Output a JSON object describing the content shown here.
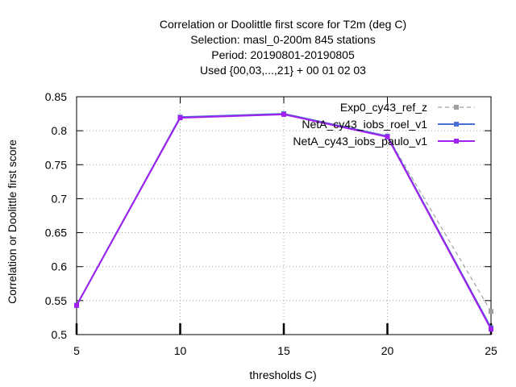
{
  "chart_data": {
    "type": "line",
    "title": [
      "Correlation or Doolittle first score  for T2m (deg C)",
      "Selection: masl_0-200m    845 stations",
      "Period: 20190801-20190805",
      "Used {00,03,...,21} + 00 01 02 03"
    ],
    "xlabel": "thresholds C)",
    "ylabel": "Correlation or Doolittle first score",
    "xlim": [
      5,
      25
    ],
    "ylim": [
      0.5,
      0.85
    ],
    "xticks": [
      "5",
      "10",
      "15",
      "20",
      "25"
    ],
    "yticks": [
      "0.5",
      "0.55",
      "0.6",
      "0.65",
      "0.7",
      "0.75",
      "0.8",
      "0.85"
    ],
    "grid": true,
    "legend_position": "top-right",
    "x": [
      5,
      10,
      15,
      20,
      25
    ],
    "series": [
      {
        "name": "Exp0_cy43_ref_z",
        "values": [
          0.543,
          0.82,
          0.825,
          0.792,
          0.534
        ],
        "color": "#a0a0a0",
        "style": "dashed"
      },
      {
        "name": "NetA_cy43_iobs_roel_v1",
        "values": [
          0.543,
          0.82,
          0.825,
          0.792,
          0.51
        ],
        "color": "#4a6fd0",
        "style": "solid"
      },
      {
        "name": "NetA_cy43_iobs_paulo_v1",
        "values": [
          0.543,
          0.819,
          0.824,
          0.791,
          0.508
        ],
        "color": "#a020f0",
        "style": "solid"
      }
    ]
  }
}
